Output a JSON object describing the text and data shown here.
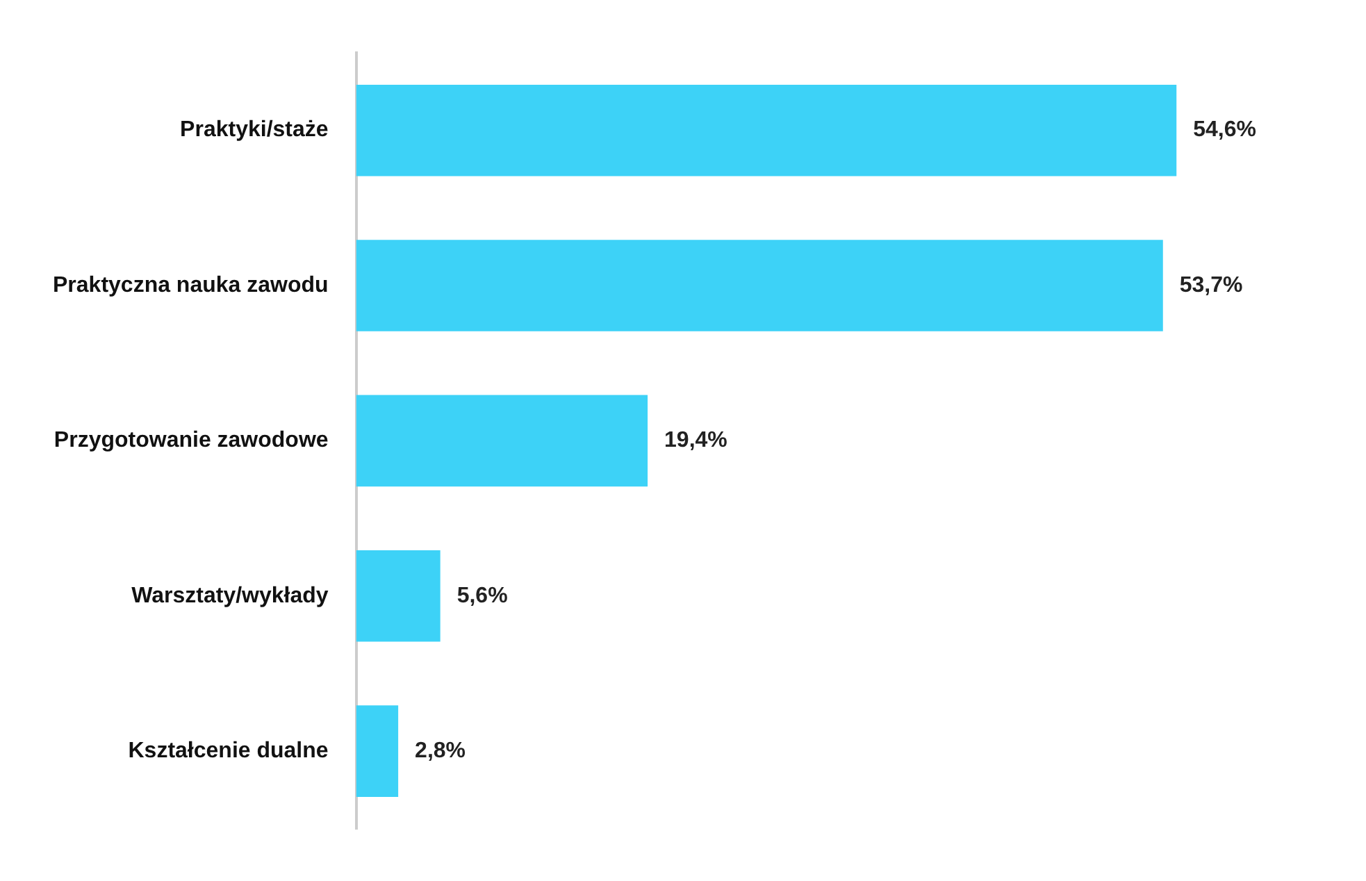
{
  "chart_data": {
    "type": "bar",
    "orientation": "horizontal",
    "categories": [
      "Praktyki/staże",
      "Praktyczna nauka zawodu",
      "Przygotowanie zawodowe",
      "Warsztaty/wykłady",
      "Kształcenie dualne"
    ],
    "values": [
      54.6,
      53.7,
      19.4,
      5.6,
      2.8
    ],
    "value_labels": [
      "54,6%",
      "53,7%",
      "19,4%",
      "5,6%",
      "2,8%"
    ],
    "color": "#3dd2f7",
    "grid": false,
    "legend": false
  }
}
